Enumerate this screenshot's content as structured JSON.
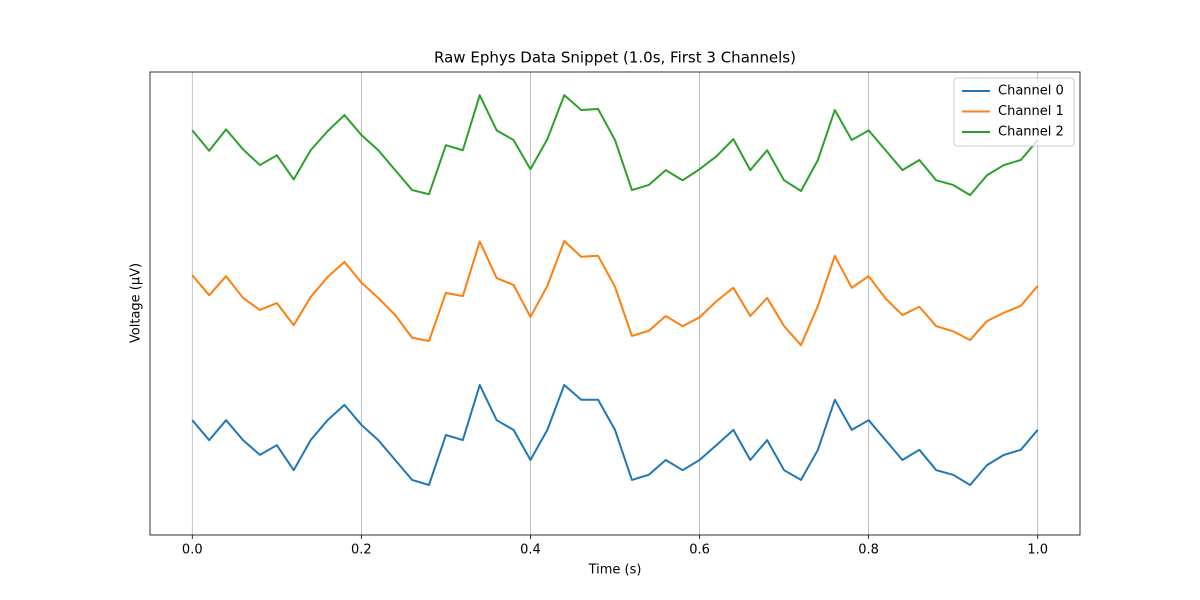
{
  "chart_data": {
    "type": "line",
    "title": "Raw Ephys Data Snippet (1.0s, First 3 Channels)",
    "xlabel": "Time (s)",
    "ylabel": "Voltage (µV)",
    "x": [
      0,
      0.02,
      0.04,
      0.06,
      0.08,
      0.1,
      0.12,
      0.14,
      0.16,
      0.18,
      0.2,
      0.22,
      0.24,
      0.26,
      0.28,
      0.3,
      0.32,
      0.34,
      0.36,
      0.38,
      0.4,
      0.42,
      0.44,
      0.46,
      0.48,
      0.5,
      0.52,
      0.54,
      0.56,
      0.58,
      0.6,
      0.62,
      0.64,
      0.66,
      0.68,
      0.7,
      0.72,
      0.74,
      0.76,
      0.78,
      0.8,
      0.82,
      0.84,
      0.86,
      0.88,
      0.9,
      0.92,
      0.94,
      0.96,
      0.98,
      1.0
    ],
    "series": [
      {
        "name": "Channel 0",
        "color": "#1f77b4",
        "values": [
          24.8,
          20.5,
          24.8,
          20.5,
          17.3,
          19.4,
          14.0,
          20.5,
          24.8,
          28.1,
          23.8,
          20.5,
          16.2,
          11.9,
          10.8,
          21.6,
          20.5,
          32.4,
          24.8,
          22.7,
          16.2,
          22.7,
          32.4,
          29.2,
          29.2,
          22.7,
          11.9,
          13.0,
          16.2,
          14.0,
          16.2,
          19.4,
          22.7,
          16.2,
          20.5,
          14.0,
          11.9,
          18.4,
          29.2,
          22.7,
          24.8,
          20.5,
          16.2,
          18.4,
          14.0,
          13.0,
          10.8,
          15.1,
          17.3,
          18.4,
          22.7
        ]
      },
      {
        "name": "Channel 1",
        "color": "#ff7f0e",
        "values": [
          56.1,
          51.8,
          55.9,
          51.2,
          48.6,
          50.1,
          45.3,
          51.4,
          55.7,
          59.0,
          54.5,
          51.2,
          47.5,
          42.6,
          41.9,
          52.3,
          51.6,
          63.4,
          55.5,
          54.0,
          47.1,
          53.8,
          63.5,
          60.1,
          60.3,
          53.6,
          43.0,
          44.1,
          47.3,
          45.1,
          47.0,
          50.5,
          53.4,
          47.3,
          51.2,
          45.1,
          41.0,
          49.5,
          60.3,
          53.4,
          55.9,
          51.1,
          47.5,
          49.3,
          45.1,
          44.0,
          42.1,
          46.2,
          48.0,
          49.5,
          53.8
        ]
      },
      {
        "name": "Channel 2",
        "color": "#2ca02c",
        "values": [
          87.4,
          83.0,
          87.6,
          83.3,
          79.9,
          82.0,
          76.8,
          83.1,
          87.2,
          90.7,
          86.4,
          83.1,
          78.8,
          74.5,
          73.6,
          84.2,
          83.1,
          95.0,
          87.4,
          85.3,
          79.0,
          85.5,
          95.0,
          91.8,
          92.0,
          85.3,
          74.5,
          75.6,
          78.8,
          76.6,
          79.0,
          81.8,
          85.5,
          78.8,
          83.1,
          76.6,
          74.3,
          81.0,
          91.8,
          85.3,
          87.4,
          83.1,
          78.8,
          81.0,
          76.6,
          75.6,
          73.4,
          77.7,
          79.9,
          81.0,
          85.3
        ]
      }
    ],
    "xlim": [
      -0.05,
      1.05
    ],
    "xticks": [
      {
        "value": 0,
        "label": "0.0"
      },
      0.2,
      0.4,
      0.6,
      0.8,
      {
        "value": 1,
        "label": "1.0"
      }
    ],
    "ylim": [
      0,
      100
    ],
    "grid": "x",
    "legend": "upper right"
  }
}
